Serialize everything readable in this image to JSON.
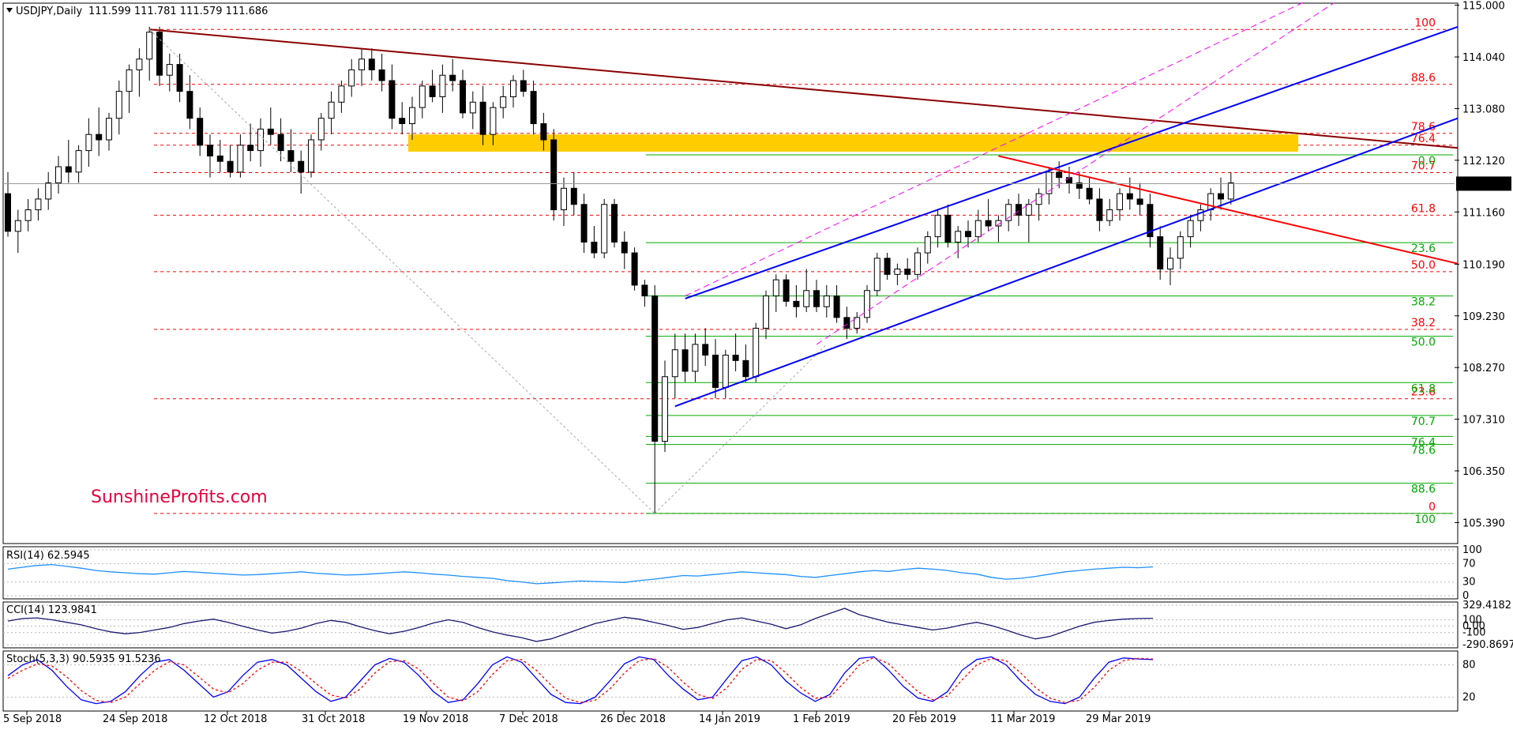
{
  "header": {
    "symbol": "USDJPY,Daily",
    "ohlc": "111.599 111.781 111.579 111.686"
  },
  "watermark": "SunshineProfits.com",
  "colors": {
    "bull": "#ffffff",
    "bear": "#000000",
    "red": "#ff0000",
    "darkred": "#8b0000",
    "blue": "#0000ff",
    "magenta": "#ff00ff",
    "green": "#00aa00",
    "yellow": "#ffcc00"
  },
  "chart_data": [
    {
      "type": "candlestick",
      "title": "USDJPY,Daily",
      "ylim": [
        105.0,
        115.0
      ],
      "y_ticks": [
        "115.000",
        "114.040",
        "113.080",
        "112.120",
        "111.160",
        "110.190",
        "109.230",
        "108.270",
        "107.310",
        "106.350",
        "105.390"
      ],
      "current_price": "111.686",
      "x_ticks": [
        "5 Sep 2018",
        "24 Sep 2018",
        "12 Oct 2018",
        "31 Oct 2018",
        "19 Nov 2018",
        "7 Dec 2018",
        "26 Dec 2018",
        "14 Jan 2019",
        "1 Feb 2019",
        "20 Feb 2019",
        "11 Mar 2019",
        "29 Mar 2019"
      ],
      "red_fib": [
        {
          "label": "100",
          "value": 114.55
        },
        {
          "label": "88.6",
          "value": 113.53
        },
        {
          "label": "78.6",
          "value": 112.62
        },
        {
          "label": "76.4",
          "value": 112.4
        },
        {
          "label": "70.7",
          "value": 111.89
        },
        {
          "label": "61.8",
          "value": 111.1
        },
        {
          "label": "50.0",
          "value": 110.05
        },
        {
          "label": "38.2",
          "value": 108.98
        },
        {
          "label": "23.6",
          "value": 107.69
        },
        {
          "label": "0",
          "value": 105.56
        }
      ],
      "green_fib": [
        {
          "label": "0.0",
          "value": 112.22
        },
        {
          "label": "23.6",
          "value": 110.59
        },
        {
          "label": "38.2",
          "value": 109.6
        },
        {
          "label": "50.0",
          "value": 108.85
        },
        {
          "label": "61.8",
          "value": 107.99
        },
        {
          "label": "70.7",
          "value": 107.38
        },
        {
          "label": "76.4",
          "value": 106.99
        },
        {
          "label": "78.6",
          "value": 106.84
        },
        {
          "label": "88.6",
          "value": 106.12
        },
        {
          "label": "100",
          "value": 105.56
        }
      ],
      "candles": [
        [
          111.5,
          111.9,
          110.7,
          110.8
        ],
        [
          110.8,
          111.2,
          110.4,
          111.0
        ],
        [
          111.0,
          111.4,
          110.8,
          111.2
        ],
        [
          111.2,
          111.6,
          111.0,
          111.4
        ],
        [
          111.4,
          111.9,
          111.2,
          111.7
        ],
        [
          111.7,
          112.2,
          111.5,
          112.0
        ],
        [
          112.0,
          112.5,
          111.7,
          111.9
        ],
        [
          111.9,
          112.4,
          111.7,
          112.3
        ],
        [
          112.3,
          112.9,
          112.0,
          112.6
        ],
        [
          112.6,
          113.1,
          112.2,
          112.5
        ],
        [
          112.5,
          113.0,
          112.3,
          112.9
        ],
        [
          112.9,
          113.6,
          112.6,
          113.4
        ],
        [
          113.4,
          113.9,
          113.0,
          113.8
        ],
        [
          113.8,
          114.2,
          113.3,
          114.0
        ],
        [
          114.0,
          114.6,
          113.6,
          114.5
        ],
        [
          114.5,
          114.6,
          113.5,
          113.7
        ],
        [
          113.7,
          114.1,
          113.4,
          113.9
        ],
        [
          113.9,
          114.1,
          113.2,
          113.4
        ],
        [
          113.4,
          113.7,
          112.7,
          112.9
        ],
        [
          112.9,
          113.1,
          112.2,
          112.4
        ],
        [
          112.4,
          112.6,
          111.8,
          112.2
        ],
        [
          112.2,
          112.5,
          111.9,
          112.1
        ],
        [
          112.1,
          112.4,
          111.8,
          111.9
        ],
        [
          111.9,
          112.6,
          111.8,
          112.4
        ],
        [
          112.4,
          112.8,
          112.1,
          112.3
        ],
        [
          112.3,
          112.9,
          112.0,
          112.7
        ],
        [
          112.7,
          113.1,
          112.4,
          112.6
        ],
        [
          112.6,
          112.9,
          112.1,
          112.3
        ],
        [
          112.3,
          112.7,
          111.9,
          112.1
        ],
        [
          112.1,
          112.3,
          111.5,
          111.9
        ],
        [
          111.9,
          112.6,
          111.8,
          112.5
        ],
        [
          112.5,
          113.0,
          112.3,
          112.9
        ],
        [
          112.9,
          113.4,
          112.6,
          113.2
        ],
        [
          113.2,
          113.6,
          113.0,
          113.5
        ],
        [
          113.5,
          114.0,
          113.3,
          113.8
        ],
        [
          113.8,
          114.2,
          113.5,
          114.0
        ],
        [
          114.0,
          114.2,
          113.6,
          113.8
        ],
        [
          113.8,
          114.1,
          113.4,
          113.6
        ],
        [
          113.6,
          113.9,
          112.7,
          112.9
        ],
        [
          112.9,
          113.2,
          112.6,
          112.8
        ],
        [
          112.8,
          113.3,
          112.5,
          113.1
        ],
        [
          113.1,
          113.6,
          112.9,
          113.5
        ],
        [
          113.5,
          113.8,
          113.2,
          113.3
        ],
        [
          113.3,
          113.9,
          113.0,
          113.7
        ],
        [
          113.7,
          114.0,
          113.4,
          113.6
        ],
        [
          113.6,
          113.8,
          112.9,
          113.0
        ],
        [
          113.0,
          113.4,
          112.7,
          113.2
        ],
        [
          113.2,
          113.5,
          112.4,
          112.6
        ],
        [
          112.6,
          113.2,
          112.4,
          113.1
        ],
        [
          113.1,
          113.5,
          112.9,
          113.3
        ],
        [
          113.3,
          113.7,
          113.1,
          113.6
        ],
        [
          113.6,
          113.8,
          113.3,
          113.4
        ],
        [
          113.4,
          113.6,
          112.6,
          112.8
        ],
        [
          112.8,
          113.0,
          112.3,
          112.5
        ],
        [
          112.5,
          112.7,
          111.0,
          111.2
        ],
        [
          111.2,
          111.8,
          110.9,
          111.6
        ],
        [
          111.6,
          111.9,
          111.1,
          111.3
        ],
        [
          111.3,
          111.5,
          110.4,
          110.6
        ],
        [
          110.6,
          110.9,
          110.3,
          110.4
        ],
        [
          110.4,
          111.4,
          110.3,
          111.3
        ],
        [
          111.3,
          111.4,
          110.5,
          110.6
        ],
        [
          110.6,
          110.8,
          110.1,
          110.4
        ],
        [
          110.4,
          110.5,
          109.7,
          109.8
        ],
        [
          109.8,
          109.9,
          109.4,
          109.6
        ],
        [
          109.6,
          109.8,
          105.56,
          106.9
        ],
        [
          106.9,
          108.4,
          106.7,
          108.1
        ],
        [
          108.1,
          108.9,
          107.7,
          108.6
        ],
        [
          108.6,
          108.9,
          108.0,
          108.2
        ],
        [
          108.2,
          108.9,
          108.0,
          108.7
        ],
        [
          108.7,
          109.0,
          108.3,
          108.5
        ],
        [
          108.5,
          108.8,
          107.7,
          107.9
        ],
        [
          107.9,
          108.6,
          107.7,
          108.5
        ],
        [
          108.5,
          108.9,
          108.2,
          108.4
        ],
        [
          108.4,
          108.7,
          108.0,
          108.1
        ],
        [
          108.1,
          109.1,
          108.0,
          109.0
        ],
        [
          109.0,
          109.7,
          108.8,
          109.6
        ],
        [
          109.6,
          110.0,
          109.3,
          109.9
        ],
        [
          109.9,
          110.0,
          109.4,
          109.5
        ],
        [
          109.5,
          109.8,
          109.2,
          109.4
        ],
        [
          109.4,
          110.1,
          109.3,
          109.7
        ],
        [
          109.7,
          109.9,
          109.3,
          109.4
        ],
        [
          109.4,
          109.8,
          109.2,
          109.6
        ],
        [
          109.6,
          109.8,
          109.1,
          109.2
        ],
        [
          109.2,
          109.4,
          108.8,
          109.0
        ],
        [
          109.0,
          109.3,
          108.9,
          109.2
        ],
        [
          109.2,
          109.8,
          109.1,
          109.7
        ],
        [
          109.7,
          110.4,
          109.6,
          110.3
        ],
        [
          110.3,
          110.4,
          109.9,
          110.0
        ],
        [
          110.0,
          110.2,
          109.8,
          110.1
        ],
        [
          110.1,
          110.3,
          109.9,
          110.0
        ],
        [
          110.0,
          110.5,
          109.9,
          110.4
        ],
        [
          110.4,
          110.8,
          110.2,
          110.7
        ],
        [
          110.7,
          111.2,
          110.5,
          111.1
        ],
        [
          111.1,
          111.3,
          110.5,
          110.6
        ],
        [
          110.6,
          110.9,
          110.3,
          110.8
        ],
        [
          110.8,
          111.0,
          110.5,
          110.7
        ],
        [
          110.7,
          111.2,
          110.6,
          111.0
        ],
        [
          111.0,
          111.4,
          110.8,
          110.9
        ],
        [
          110.9,
          111.1,
          110.6,
          111.0
        ],
        [
          111.0,
          111.4,
          110.8,
          111.3
        ],
        [
          111.3,
          111.5,
          110.9,
          111.1
        ],
        [
          111.1,
          111.4,
          110.6,
          111.3
        ],
        [
          111.3,
          111.6,
          111.0,
          111.5
        ],
        [
          111.5,
          112.0,
          111.3,
          111.9
        ],
        [
          111.9,
          112.1,
          111.6,
          111.8
        ],
        [
          111.8,
          112.0,
          111.5,
          111.7
        ],
        [
          111.7,
          111.9,
          111.4,
          111.6
        ],
        [
          111.6,
          111.8,
          111.3,
          111.4
        ],
        [
          111.4,
          111.6,
          110.8,
          111.0
        ],
        [
          111.0,
          111.4,
          110.9,
          111.2
        ],
        [
          111.2,
          111.6,
          111.0,
          111.5
        ],
        [
          111.5,
          111.8,
          111.2,
          111.4
        ],
        [
          111.4,
          111.7,
          111.1,
          111.3
        ],
        [
          111.3,
          111.5,
          110.5,
          110.7
        ],
        [
          110.7,
          110.9,
          109.9,
          110.1
        ],
        [
          110.1,
          110.5,
          109.8,
          110.3
        ],
        [
          110.3,
          110.8,
          110.1,
          110.7
        ],
        [
          110.7,
          111.1,
          110.5,
          111.0
        ],
        [
          111.0,
          111.3,
          110.8,
          111.2
        ],
        [
          111.2,
          111.6,
          111.0,
          111.5
        ],
        [
          111.5,
          111.8,
          111.2,
          111.4
        ],
        [
          111.4,
          111.9,
          111.3,
          111.7
        ]
      ]
    },
    {
      "type": "line",
      "title": "RSI(14) 62.5945",
      "y_ticks": [
        "100",
        "70",
        "30",
        "0"
      ],
      "ylim": [
        0,
        100
      ],
      "values": [
        58,
        62,
        66,
        68,
        64,
        60,
        55,
        52,
        50,
        48,
        47,
        50,
        53,
        51,
        49,
        47,
        45,
        46,
        48,
        50,
        52,
        49,
        47,
        45,
        46,
        48,
        50,
        52,
        50,
        47,
        45,
        42,
        40,
        38,
        33,
        30,
        26,
        28,
        30,
        32,
        31,
        30,
        29,
        33,
        36,
        40,
        44,
        43,
        46,
        49,
        52,
        50,
        48,
        46,
        42,
        40,
        44,
        48,
        52,
        55,
        53,
        57,
        60,
        58,
        55,
        50,
        47,
        40,
        36,
        38,
        42,
        47,
        52,
        55,
        58,
        60,
        62,
        61,
        63
      ]
    },
    {
      "type": "line",
      "title": "CCI(14) 123.9841",
      "y_ticks": [
        "329.4182",
        "100",
        "0.00",
        "-100",
        "-290.8697"
      ],
      "ylim": [
        -290.8697,
        329.4182
      ],
      "values": [
        80,
        120,
        130,
        100,
        60,
        20,
        -40,
        -90,
        -120,
        -100,
        -60,
        -20,
        40,
        80,
        110,
        60,
        0,
        -60,
        -110,
        -80,
        -30,
        40,
        90,
        60,
        -10,
        -70,
        -120,
        -80,
        -20,
        50,
        100,
        60,
        -20,
        -90,
        -140,
        -180,
        -240,
        -200,
        -120,
        -40,
        40,
        90,
        140,
        110,
        60,
        10,
        -50,
        -20,
        40,
        100,
        130,
        80,
        30,
        -40,
        20,
        120,
        200,
        280,
        180,
        120,
        60,
        20,
        -20,
        -60,
        -30,
        20,
        60,
        10,
        -60,
        -140,
        -200,
        -160,
        -80,
        0,
        60,
        90,
        110,
        120,
        124
      ]
    },
    {
      "type": "line",
      "title": "Stoch(5,3,3) 90.5935 91.5236",
      "y_ticks": [
        "80",
        "20"
      ],
      "ylim": [
        0,
        100
      ],
      "series": [
        {
          "name": "%K",
          "values": [
            60,
            80,
            90,
            70,
            40,
            15,
            8,
            12,
            30,
            60,
            85,
            90,
            70,
            45,
            20,
            30,
            60,
            85,
            90,
            80,
            55,
            30,
            12,
            20,
            50,
            80,
            92,
            85,
            60,
            30,
            10,
            15,
            45,
            80,
            95,
            85,
            55,
            25,
            10,
            8,
            20,
            50,
            82,
            95,
            90,
            60,
            35,
            15,
            20,
            55,
            88,
            95,
            80,
            50,
            28,
            12,
            25,
            65,
            92,
            95,
            70,
            40,
            18,
            12,
            30,
            70,
            90,
            95,
            80,
            50,
            25,
            12,
            8,
            20,
            55,
            85,
            93,
            91,
            90
          ]
        },
        {
          "name": "%D",
          "values": [
            55,
            70,
            82,
            78,
            58,
            32,
            14,
            10,
            20,
            45,
            70,
            86,
            80,
            58,
            35,
            28,
            45,
            70,
            85,
            85,
            68,
            45,
            24,
            18,
            35,
            65,
            86,
            88,
            72,
            45,
            20,
            13,
            30,
            62,
            88,
            90,
            70,
            42,
            18,
            10,
            14,
            35,
            65,
            88,
            92,
            75,
            48,
            25,
            17,
            38,
            72,
            90,
            88,
            65,
            38,
            18,
            20,
            48,
            80,
            94,
            82,
            55,
            30,
            15,
            22,
            52,
            80,
            92,
            88,
            65,
            38,
            18,
            10,
            14,
            38,
            70,
            88,
            92,
            91
          ]
        }
      ]
    }
  ]
}
